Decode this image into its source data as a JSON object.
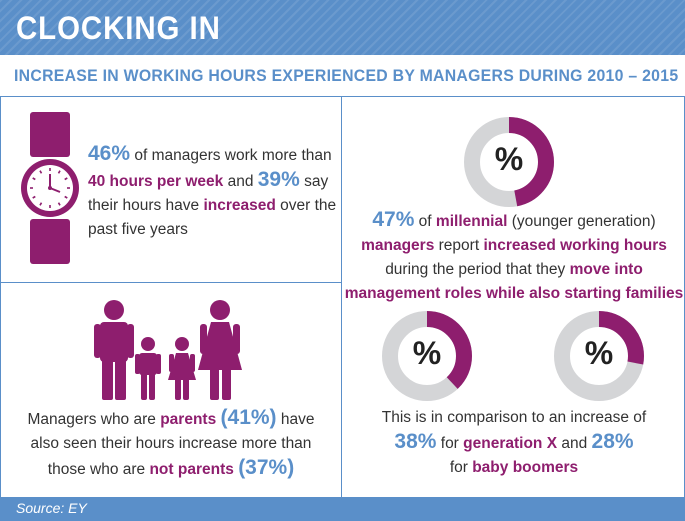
{
  "header": {
    "title": "CLOCKING IN"
  },
  "subtitle": "INCREASE IN WORKING HOURS EXPERIENCED BY MANAGERS DURING 2010 – 2015",
  "colors": {
    "accent_blue": "#5a8fc9",
    "accent_purple": "#8e1e6e",
    "donut_grey": "#d4d5d7",
    "text": "#333333"
  },
  "panel_watch": {
    "icon": "wristwatch-icon",
    "l1_pct": "46%",
    "l1_text": " of managers work more than",
    "l2_hl": "40 hours per week",
    "l2_mid": " and ",
    "l2_pct": "39%",
    "l2_end": " say",
    "l3_pre": "their hours have ",
    "l3_hl": "increased",
    "l3_end": " over the",
    "l4": "past five years"
  },
  "panel_family": {
    "icon": "family-icon",
    "l1_pre": "Managers who are ",
    "l1_hl": "parents",
    "l1_pct": "(41%)",
    "l1_end": " have",
    "l2": "also seen their hours increase more than",
    "l3_pre": "those who are ",
    "l3_hl": "not parents",
    "l3_pct": "(37%)"
  },
  "panel_millennial": {
    "donut_symbol": "%",
    "donut_fraction": 0.47,
    "l1_pct": "47%",
    "l1_mid": " of ",
    "l1_hl": "millennial",
    "l1_end": " (younger generation)",
    "l2_hl1": "managers",
    "l2_mid": " report ",
    "l2_hl2": "increased working hours",
    "l3_pre": "during the period that they ",
    "l3_hl": "move into",
    "l4_hl": "management roles while also starting families"
  },
  "panel_generations": {
    "donut_symbol": "%",
    "genx_fraction": 0.38,
    "boomers_fraction": 0.28,
    "l1": "This is in comparison to an increase of",
    "l2_pct1": "38%",
    "l2_mid": " for ",
    "l2_hl1": "generation X",
    "l2_and": " and ",
    "l2_pct2": "28%",
    "l3_pre": "for ",
    "l3_hl": "baby boomers"
  },
  "footer": {
    "source": "Source: EY"
  }
}
